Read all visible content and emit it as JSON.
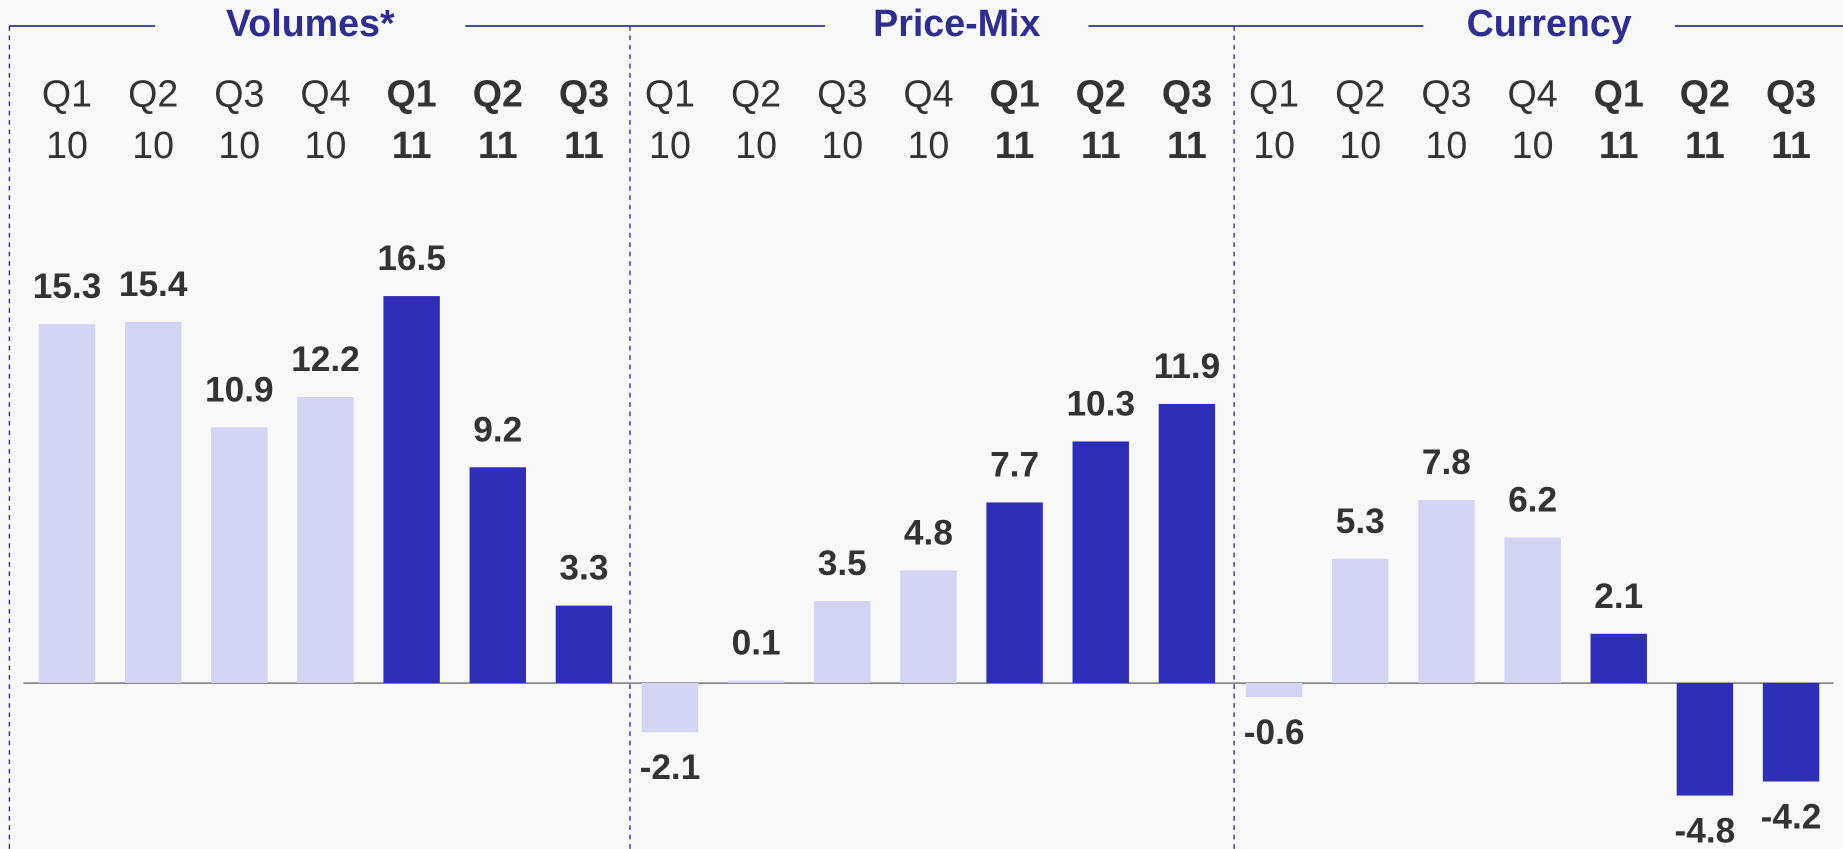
{
  "chart_data": [
    {
      "type": "bar",
      "title": "Volumes*",
      "categories": [
        [
          "Q1",
          "10"
        ],
        [
          "Q2",
          "10"
        ],
        [
          "Q3",
          "10"
        ],
        [
          "Q4",
          "10"
        ],
        [
          "Q1",
          "11"
        ],
        [
          "Q2",
          "11"
        ],
        [
          "Q3",
          "11"
        ]
      ],
      "values": [
        15.3,
        15.4,
        10.9,
        12.2,
        16.5,
        9.2,
        3.3
      ],
      "highlight": [
        false,
        false,
        false,
        false,
        true,
        true,
        true
      ],
      "color": "#d3d3f3",
      "highlight_color": "#2e2eb8",
      "ylim": [
        -7,
        22
      ]
    },
    {
      "type": "bar",
      "title": "Price-Mix",
      "categories": [
        [
          "Q1",
          "10"
        ],
        [
          "Q2",
          "10"
        ],
        [
          "Q3",
          "10"
        ],
        [
          "Q4",
          "10"
        ],
        [
          "Q1",
          "11"
        ],
        [
          "Q2",
          "11"
        ],
        [
          "Q3",
          "11"
        ]
      ],
      "values": [
        -2.1,
        0.1,
        3.5,
        4.8,
        7.7,
        10.3,
        11.9
      ],
      "highlight": [
        false,
        false,
        false,
        false,
        true,
        true,
        true
      ],
      "color": "#d3d3f3",
      "highlight_color": "#2e2eb8",
      "ylim": [
        -7,
        22
      ]
    },
    {
      "type": "bar",
      "title": "Currency",
      "categories": [
        [
          "Q1",
          "10"
        ],
        [
          "Q2",
          "10"
        ],
        [
          "Q3",
          "10"
        ],
        [
          "Q4",
          "10"
        ],
        [
          "Q1",
          "11"
        ],
        [
          "Q2",
          "11"
        ],
        [
          "Q3",
          "11"
        ]
      ],
      "values": [
        -0.6,
        5.3,
        7.8,
        6.2,
        2.1,
        -4.8,
        -4.2
      ],
      "highlight": [
        false,
        false,
        false,
        false,
        true,
        true,
        true
      ],
      "color": "#d3d3f3",
      "highlight_color": "#2e2eb8",
      "ylim": [
        -7,
        22
      ]
    }
  ]
}
